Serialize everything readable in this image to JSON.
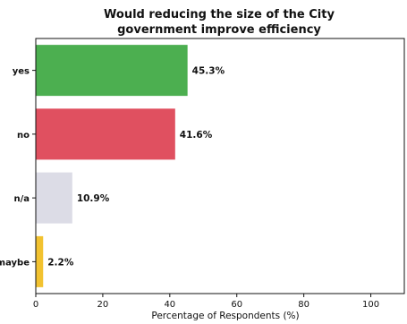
{
  "chart_data": {
    "type": "bar",
    "orientation": "horizontal",
    "title_lines": [
      "Would reducing the size of the City",
      "government improve efficiency"
    ],
    "categories": [
      "yes",
      "no",
      "n/a",
      "maybe"
    ],
    "values": [
      45.3,
      41.6,
      10.9,
      2.2
    ],
    "value_labels": [
      "45.3%",
      "41.6%",
      "10.9%",
      "2.2%"
    ],
    "colors": [
      "#4caf50",
      "#e05060",
      "#dcdce6",
      "#f2c230"
    ],
    "xlabel": "Percentage of Respondents (%)",
    "xlim": [
      0,
      110
    ],
    "xticks": [
      0,
      20,
      40,
      60,
      80,
      100
    ],
    "grid": false,
    "legend": "none"
  }
}
